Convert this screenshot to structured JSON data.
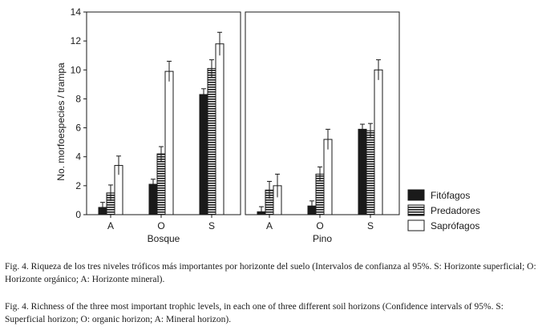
{
  "chart_data": {
    "type": "bar",
    "ylabel": "No. morfoespecies / trampa",
    "ylim": [
      0,
      14
    ],
    "yticks": [
      0,
      2,
      4,
      6,
      8,
      10,
      12,
      14
    ],
    "categories": [
      "A",
      "O",
      "S"
    ],
    "legend_position": "right",
    "panels": [
      {
        "xlabel": "Bosque",
        "series": [
          {
            "name": "Fitófagos",
            "values": [
              0.5,
              2.1,
              8.3
            ],
            "error": [
              0.35,
              0.35,
              0.4
            ]
          },
          {
            "name": "Predadores",
            "values": [
              1.5,
              4.2,
              10.1
            ],
            "error": [
              0.55,
              0.5,
              0.6
            ]
          },
          {
            "name": "Saprófagos",
            "values": [
              3.4,
              9.9,
              11.8
            ],
            "error": [
              0.65,
              0.7,
              0.8
            ]
          }
        ]
      },
      {
        "xlabel": "Pino",
        "series": [
          {
            "name": "Fitófagos",
            "values": [
              0.2,
              0.6,
              5.9
            ],
            "error": [
              0.35,
              0.35,
              0.35
            ]
          },
          {
            "name": "Predadores",
            "values": [
              1.7,
              2.8,
              5.8
            ],
            "error": [
              0.6,
              0.5,
              0.5
            ]
          },
          {
            "name": "Saprófagos",
            "values": [
              2.0,
              5.2,
              10.0
            ],
            "error": [
              0.8,
              0.7,
              0.7
            ]
          }
        ]
      }
    ]
  },
  "series_styles": [
    {
      "fill": "#1a1a1a",
      "pattern": "solid"
    },
    {
      "fill": "#ffffff",
      "pattern": "horizontal-stripes"
    },
    {
      "fill": "#ffffff",
      "pattern": "none"
    }
  ],
  "captions": {
    "es": "Fig. 4. Riqueza de los tres niveles tróficos más importantes por horizonte del suelo (Intervalos de confianza al 95%. S: Horizonte superficial; O: Horizonte orgánico; A: Horizonte mineral).",
    "en": "Fig. 4. Richness of the three most important trophic levels, in each one of three different soil horizons (Confidence intervals of 95%. S: Superficial horizon; O: organic horizon; A: Mineral horizon)."
  }
}
